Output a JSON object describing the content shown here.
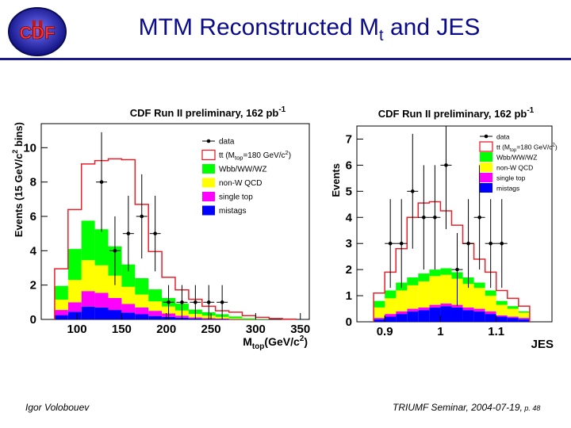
{
  "slide": {
    "title_main": "MTM Reconstructed M",
    "title_sub": "t",
    "title_tail": " and JES",
    "logo_text": "CDF",
    "logo_roman": "II",
    "footer_left": "Igor Volobouev",
    "footer_right_main": "TRIUMF Seminar, 2004-07-19,",
    "footer_right_page": " p. 48"
  },
  "colors": {
    "title": "#0a0a8c",
    "ttbar": "#e8202a",
    "wbb": "#00ff00",
    "nonw": "#ffff00",
    "singletop": "#ff00ff",
    "mistags": "#0000ff"
  },
  "chart_data": [
    {
      "type": "bar",
      "title": "CDF Run II preliminary, 162 pb",
      "title_sup": "-1",
      "xlabel": "M",
      "xlabel_sub": "top",
      "xlabel_tail": "(GeV/c",
      "xlabel_sup": "2",
      "xlabel_end": ")",
      "ylabel": "Events (15 GeV/c",
      "ylabel_sup": "2",
      "ylabel_end": " bins)",
      "xlim": [
        60,
        360
      ],
      "ylim": [
        0,
        11.4
      ],
      "xticks": [
        100,
        150,
        200,
        250,
        300,
        350
      ],
      "yticks": [
        0,
        2,
        4,
        6,
        8,
        10
      ],
      "bin_edges": [
        75,
        90,
        105,
        120,
        135,
        150,
        165,
        180,
        195,
        210,
        225,
        240,
        255,
        270,
        285,
        300,
        315,
        330,
        345
      ],
      "stack": {
        "mistags": [
          0.25,
          0.45,
          0.75,
          0.7,
          0.55,
          0.4,
          0.3,
          0.2,
          0.15,
          0.1,
          0.05,
          0.02,
          0.02,
          0.0,
          0.0,
          0.0,
          0.0,
          0.0
        ],
        "singletop": [
          0.3,
          0.55,
          0.9,
          0.85,
          0.7,
          0.5,
          0.4,
          0.3,
          0.2,
          0.12,
          0.07,
          0.05,
          0.03,
          0.02,
          0.0,
          0.0,
          0.0,
          0.0
        ],
        "nonw": [
          0.6,
          1.3,
          1.8,
          1.6,
          1.3,
          1.0,
          0.75,
          0.55,
          0.4,
          0.3,
          0.2,
          0.15,
          0.1,
          0.05,
          0.02,
          0.0,
          0.0,
          0.0
        ],
        "wbb": [
          0.8,
          1.8,
          2.3,
          2.1,
          1.7,
          1.3,
          0.95,
          0.7,
          0.5,
          0.4,
          0.25,
          0.2,
          0.15,
          0.1,
          0.05,
          0.02,
          0.0,
          0.0
        ],
        "ttbar": [
          1.0,
          2.3,
          3.3,
          4.0,
          5.1,
          6.1,
          4.3,
          2.2,
          1.2,
          0.8,
          0.6,
          0.35,
          0.2,
          0.25,
          0.15,
          0.1,
          0.05,
          0.02
        ]
      },
      "data_points": [
        {
          "x": 127.5,
          "y": 8,
          "err": 2.9
        },
        {
          "x": 142.5,
          "y": 4,
          "err": 2.0
        },
        {
          "x": 157.5,
          "y": 5,
          "err": 2.2
        },
        {
          "x": 172.5,
          "y": 6,
          "err": 2.45
        },
        {
          "x": 187.5,
          "y": 5,
          "err": 2.2
        },
        {
          "x": 202.5,
          "y": 1,
          "err": 1.0
        },
        {
          "x": 217.5,
          "y": 1,
          "err": 1.0
        },
        {
          "x": 232.5,
          "y": 1,
          "err": 1.0
        },
        {
          "x": 247.5,
          "y": 1,
          "err": 1.0
        },
        {
          "x": 262.5,
          "y": 1,
          "err": 1.0
        }
      ],
      "legend": {
        "position": "top-right",
        "entries": [
          {
            "key": "data",
            "label": "data"
          },
          {
            "key": "ttbar",
            "label": "tt (M",
            "label_sub": "top",
            "label_tail": "=180 GeV/c",
            "label_sup": "2",
            "label_end": ")"
          },
          {
            "key": "wbb",
            "label": "Wbb/WW/WZ"
          },
          {
            "key": "nonw",
            "label": "non-W QCD"
          },
          {
            "key": "singletop",
            "label": "single top"
          },
          {
            "key": "mistags",
            "label": "mistags"
          }
        ]
      }
    },
    {
      "type": "bar",
      "title": "CDF Run II preliminary, 162 pb",
      "title_sup": "-1",
      "xlabel": "JES",
      "ylabel": "Events",
      "xlim": [
        0.85,
        1.2
      ],
      "ylim": [
        0,
        7.5
      ],
      "xticks": [
        0.9,
        1,
        1.1
      ],
      "yticks": [
        0,
        1,
        2,
        3,
        4,
        5,
        6,
        7
      ],
      "bin_edges": [
        0.88,
        0.9,
        0.92,
        0.94,
        0.96,
        0.98,
        1.0,
        1.02,
        1.04,
        1.06,
        1.08,
        1.1,
        1.12,
        1.14,
        1.16
      ],
      "stack": {
        "mistags": [
          0.1,
          0.2,
          0.3,
          0.4,
          0.45,
          0.55,
          0.6,
          0.55,
          0.45,
          0.4,
          0.3,
          0.2,
          0.15,
          0.1
        ],
        "singletop": [
          0.05,
          0.1,
          0.1,
          0.1,
          0.1,
          0.1,
          0.1,
          0.1,
          0.1,
          0.1,
          0.1,
          0.05,
          0.05,
          0.05
        ],
        "nonw": [
          0.4,
          0.6,
          0.8,
          0.9,
          1.0,
          1.1,
          1.1,
          1.0,
          0.9,
          0.8,
          0.6,
          0.4,
          0.3,
          0.2
        ],
        "wbb": [
          0.25,
          0.3,
          0.3,
          0.3,
          0.3,
          0.25,
          0.25,
          0.25,
          0.25,
          0.2,
          0.2,
          0.15,
          0.1,
          0.05
        ],
        "ttbar": [
          0.3,
          0.7,
          1.3,
          2.3,
          2.7,
          2.6,
          2.2,
          1.8,
          1.3,
          0.9,
          0.7,
          0.4,
          0.3,
          0.2
        ]
      },
      "data_points": [
        {
          "x": 0.91,
          "y": 3,
          "err": 1.7
        },
        {
          "x": 0.93,
          "y": 3,
          "err": 1.7
        },
        {
          "x": 0.95,
          "y": 5,
          "err": 2.2
        },
        {
          "x": 0.97,
          "y": 4,
          "err": 2.0
        },
        {
          "x": 0.99,
          "y": 4,
          "err": 2.0
        },
        {
          "x": 1.01,
          "y": 6,
          "err": 2.45
        },
        {
          "x": 1.03,
          "y": 2,
          "err": 1.4
        },
        {
          "x": 1.05,
          "y": 3,
          "err": 1.7
        },
        {
          "x": 1.07,
          "y": 4,
          "err": 2.0
        },
        {
          "x": 1.09,
          "y": 3,
          "err": 1.7
        },
        {
          "x": 1.11,
          "y": 3,
          "err": 1.7
        }
      ],
      "legend": {
        "position": "top-right",
        "entries": [
          {
            "key": "data",
            "label": "data"
          },
          {
            "key": "ttbar",
            "label": "tt (M",
            "label_sub": "top",
            "label_tail": "=180 GeV/c",
            "label_sup": "2",
            "label_end": ")"
          },
          {
            "key": "wbb",
            "label": "Wbb/WW/WZ"
          },
          {
            "key": "nonw",
            "label": "non-W QCD"
          },
          {
            "key": "singletop",
            "label": "single top"
          },
          {
            "key": "mistags",
            "label": "mistags"
          }
        ]
      }
    }
  ]
}
